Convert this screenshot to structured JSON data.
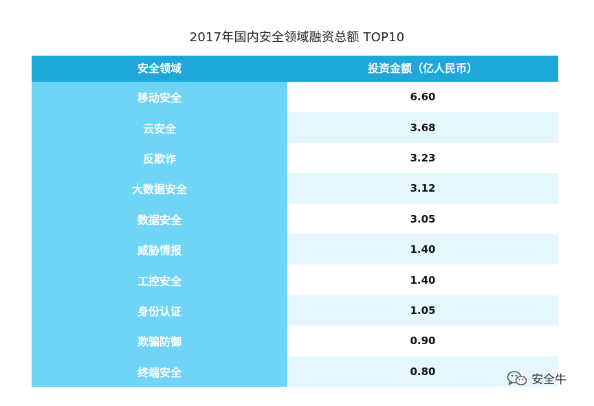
{
  "chart_data": {
    "type": "table",
    "title": "2017年国内安全领域融资总额 TOP10",
    "columns": [
      "安全领域",
      "投资金额（亿人民币）"
    ],
    "categories": [
      "移动安全",
      "云安全",
      "反欺诈",
      "大数据安全",
      "数据安全",
      "威胁情报",
      "工控安全",
      "身份认证",
      "欺骗防御",
      "终端安全"
    ],
    "values": [
      "6.60",
      "3.68",
      "3.23",
      "3.12",
      "3.05",
      "1.40",
      "1.40",
      "1.05",
      "0.90",
      "0.80"
    ]
  },
  "watermark": {
    "text": "安全牛",
    "icon": "wechat-icon"
  },
  "colors": {
    "header_bg": "#1ea7d9",
    "category_bg": "#6fd4f5",
    "row_alt_bg": "#e6f6fd"
  }
}
